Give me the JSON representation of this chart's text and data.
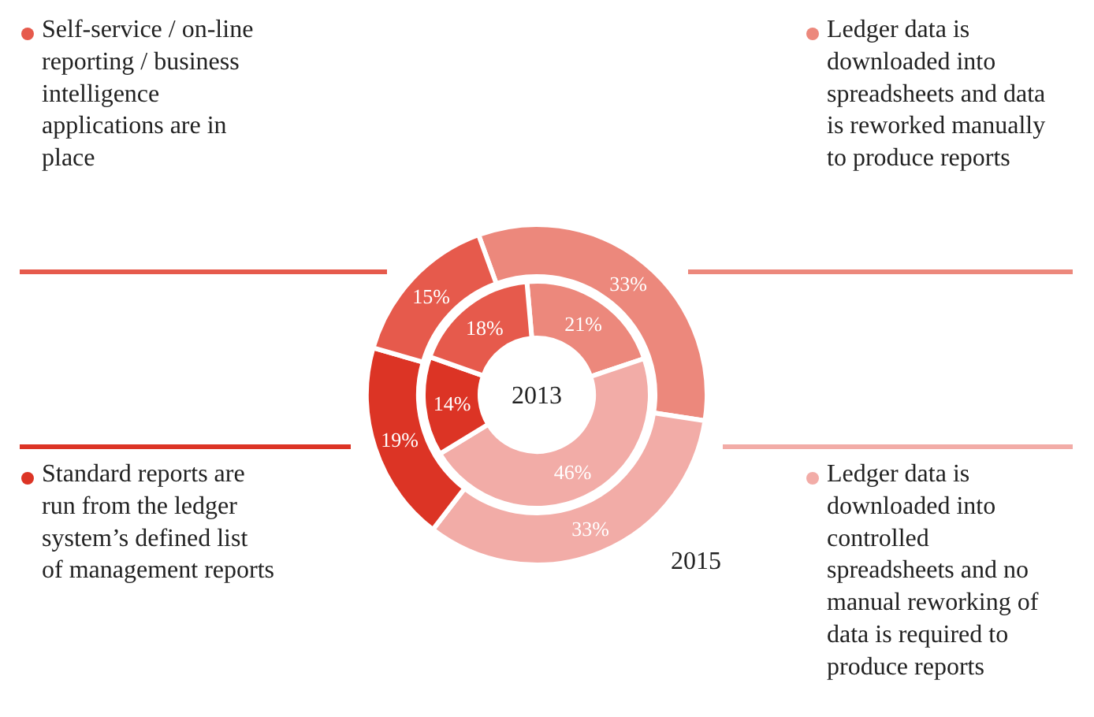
{
  "chart_data": {
    "type": "donut",
    "categories": [
      "Ledger data is downloaded into spreadsheets and data is reworked manually to produce reports",
      "Ledger data is downloaded into controlled spreadsheets and no manual reworking of data is required to produce reports",
      "Standard reports are run from the ledger system’s defined list of management reports",
      "Self-service / on-line reporting / business intelligence applications are in place"
    ],
    "colors": [
      "#ec887c",
      "#f2aca7",
      "#dc3425",
      "#e65a4c"
    ],
    "series": [
      {
        "name": "2013",
        "values": [
          21,
          46,
          14,
          18
        ],
        "value_labels": [
          "21%",
          "46%",
          "14%",
          "18%"
        ]
      },
      {
        "name": "2015",
        "values": [
          33,
          33,
          19,
          15
        ],
        "value_labels": [
          "33%",
          "33%",
          "19%",
          "15%"
        ]
      }
    ],
    "legend": "top left"
  }
}
